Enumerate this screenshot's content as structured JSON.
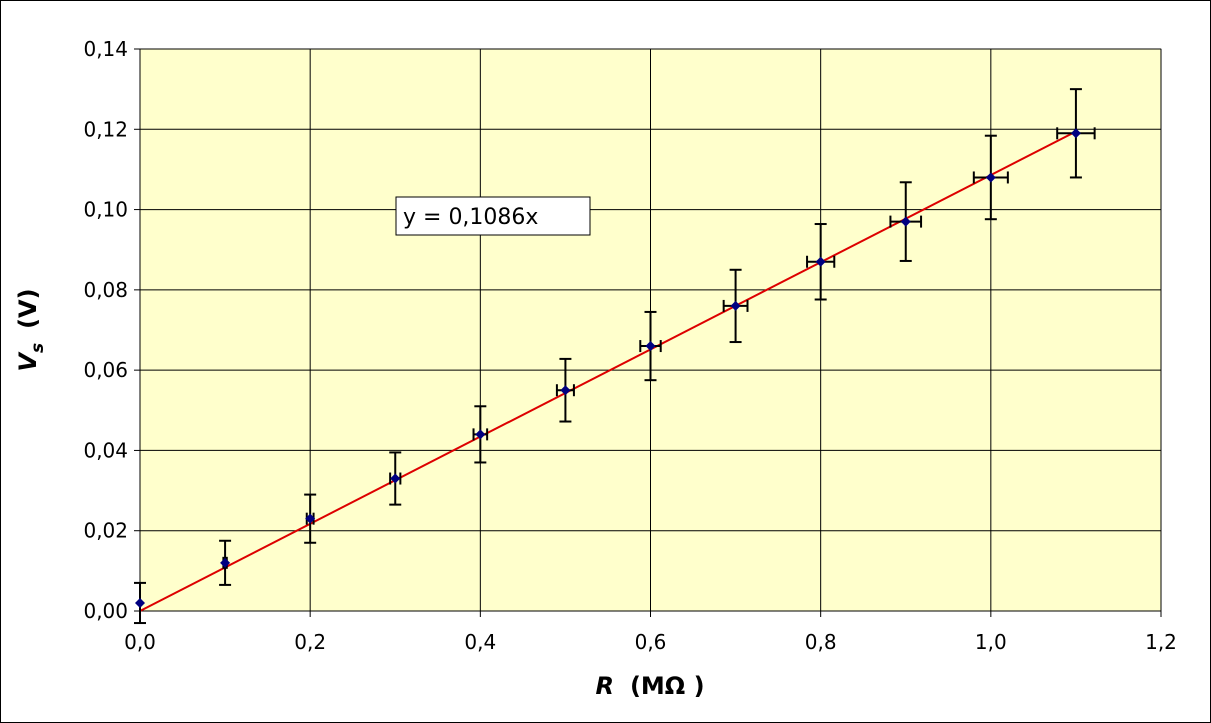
{
  "chart_data": {
    "type": "scatter",
    "x_label": {
      "symbol": "R",
      "unit": "(MΩ )"
    },
    "y_label": {
      "symbol": "V",
      "subscript": "s",
      "unit": "(V)"
    },
    "series": [
      {
        "name": null,
        "color": "#000080",
        "x": [
          0,
          0.1,
          0.2,
          0.3,
          0.4,
          0.5,
          0.6,
          0.7,
          0.8,
          0.9,
          1.0,
          1.1
        ],
        "values": [
          0.002,
          0.012,
          0.023,
          0.033,
          0.044,
          0.055,
          0.066,
          0.076,
          0.087,
          0.097,
          0.108,
          0.119
        ],
        "yerr": [
          0.005,
          0.0055,
          0.006,
          0.0065,
          0.007,
          0.0078,
          0.0085,
          0.009,
          0.0094,
          0.0098,
          0.0104,
          0.011
        ],
        "xerr": [
          0,
          0.002,
          0.004,
          0.006,
          0.008,
          0.01,
          0.012,
          0.014,
          0.016,
          0.018,
          0.02,
          0.022
        ]
      }
    ],
    "trendline": {
      "slope": 0.1086,
      "label": "y = 0,1086x",
      "color": "#dd0000"
    },
    "xlim": [
      0,
      1.2
    ],
    "xticks": [
      {
        "value": 0,
        "label": "0,0"
      },
      {
        "value": 0.2,
        "label": "0,2"
      },
      {
        "value": 0.4,
        "label": "0,4"
      },
      {
        "value": 0.6,
        "label": "0,6"
      },
      {
        "value": 0.8,
        "label": "0,8"
      },
      {
        "value": 1.0,
        "label": "1,0"
      },
      {
        "value": 1.2,
        "label": "1,2"
      }
    ],
    "ylim": [
      0,
      0.14
    ],
    "yticks": [
      {
        "value": 0,
        "label": "0,00"
      },
      {
        "value": 0.02,
        "label": "0,02"
      },
      {
        "value": 0.04,
        "label": "0,04"
      },
      {
        "value": 0.06,
        "label": "0,06"
      },
      {
        "value": 0.08,
        "label": "0,08"
      },
      {
        "value": 0.1,
        "label": "0,10"
      },
      {
        "value": 0.12,
        "label": "0,12"
      },
      {
        "value": 0.14,
        "label": "0,14"
      }
    ],
    "grid": true,
    "plot_background": "#ffffcc"
  }
}
